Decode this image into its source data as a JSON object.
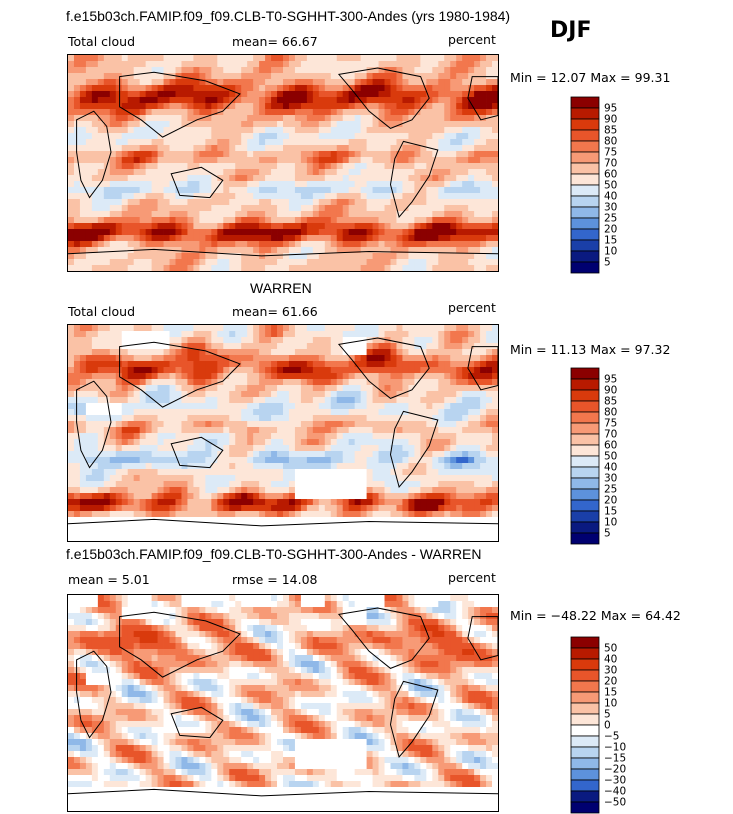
{
  "header": {
    "title": "f.e15b03ch.FAMIP.f09_f09.CLB-T0-SGHHT-300-Andes (yrs 1980-1984)",
    "season": "DJF"
  },
  "panels": [
    {
      "id": "model",
      "title": "",
      "left_label": "Total cloud",
      "stat_label": "mean=  66.67",
      "right_label": "percent",
      "minmax_label": "Min =  12.07 Max =  99.31"
    },
    {
      "id": "obs",
      "title": "WARREN",
      "left_label": "Total cloud",
      "stat_label": "mean=  61.66",
      "right_label": "percent",
      "minmax_label": "Min =  11.13 Max =  97.32"
    },
    {
      "id": "diff",
      "title": "f.e15b03ch.FAMIP.f09_f09.CLB-T0-SGHHT-300-Andes - WARREN",
      "left_label": "mean =   5.01",
      "stat_label": "rmse =  14.08",
      "right_label": "percent",
      "minmax_label": "Min = −48.22 Max =  64.42"
    }
  ],
  "chart_data": [
    {
      "type": "heatmap",
      "title": "",
      "variable": "Total cloud",
      "units": "percent",
      "mean": 66.67,
      "min": 12.07,
      "max": 99.31,
      "colorbar": {
        "levels": [
          "95",
          "90",
          "85",
          "80",
          "75",
          "70",
          "60",
          "50",
          "40",
          "30",
          "25",
          "20",
          "15",
          "10",
          "5"
        ],
        "colors": [
          "#8b0000",
          "#b81a00",
          "#d93a0c",
          "#e8552a",
          "#f2774d",
          "#f79a76",
          "#fac2a6",
          "#fde6d8",
          "#dceaf7",
          "#b8d4f0",
          "#8fb8e8",
          "#5d92dc",
          "#3366cc",
          "#1a3fa8",
          "#0a1a80",
          "#000070"
        ]
      }
    },
    {
      "type": "heatmap",
      "title": "WARREN",
      "variable": "Total cloud",
      "units": "percent",
      "mean": 61.66,
      "min": 11.13,
      "max": 97.32,
      "colorbar": {
        "levels": [
          "95",
          "90",
          "85",
          "80",
          "75",
          "70",
          "60",
          "50",
          "40",
          "30",
          "25",
          "20",
          "15",
          "10",
          "5"
        ],
        "colors": [
          "#8b0000",
          "#b81a00",
          "#d93a0c",
          "#e8552a",
          "#f2774d",
          "#f79a76",
          "#fac2a6",
          "#fde6d8",
          "#dceaf7",
          "#b8d4f0",
          "#8fb8e8",
          "#5d92dc",
          "#3366cc",
          "#1a3fa8",
          "#0a1a80",
          "#000070"
        ]
      }
    },
    {
      "type": "heatmap",
      "title": "f.e15b03ch.FAMIP.f09_f09.CLB-T0-SGHHT-300-Andes - WARREN",
      "units": "percent",
      "mean": 5.01,
      "rmse": 14.08,
      "min": -48.22,
      "max": 64.42,
      "colorbar": {
        "levels": [
          "50",
          "40",
          "30",
          "20",
          "15",
          "10",
          "5",
          "0",
          "−5",
          "−10",
          "−15",
          "−20",
          "−30",
          "−40",
          "−50"
        ],
        "colors": [
          "#8b0000",
          "#b81a00",
          "#d93a0c",
          "#e8552a",
          "#f2774d",
          "#f79a76",
          "#fac2a6",
          "#fde6d8",
          "#ffffff",
          "#dceaf7",
          "#b8d4f0",
          "#8fb8e8",
          "#5d92dc",
          "#3366cc",
          "#0a1a80",
          "#000070"
        ]
      }
    }
  ]
}
